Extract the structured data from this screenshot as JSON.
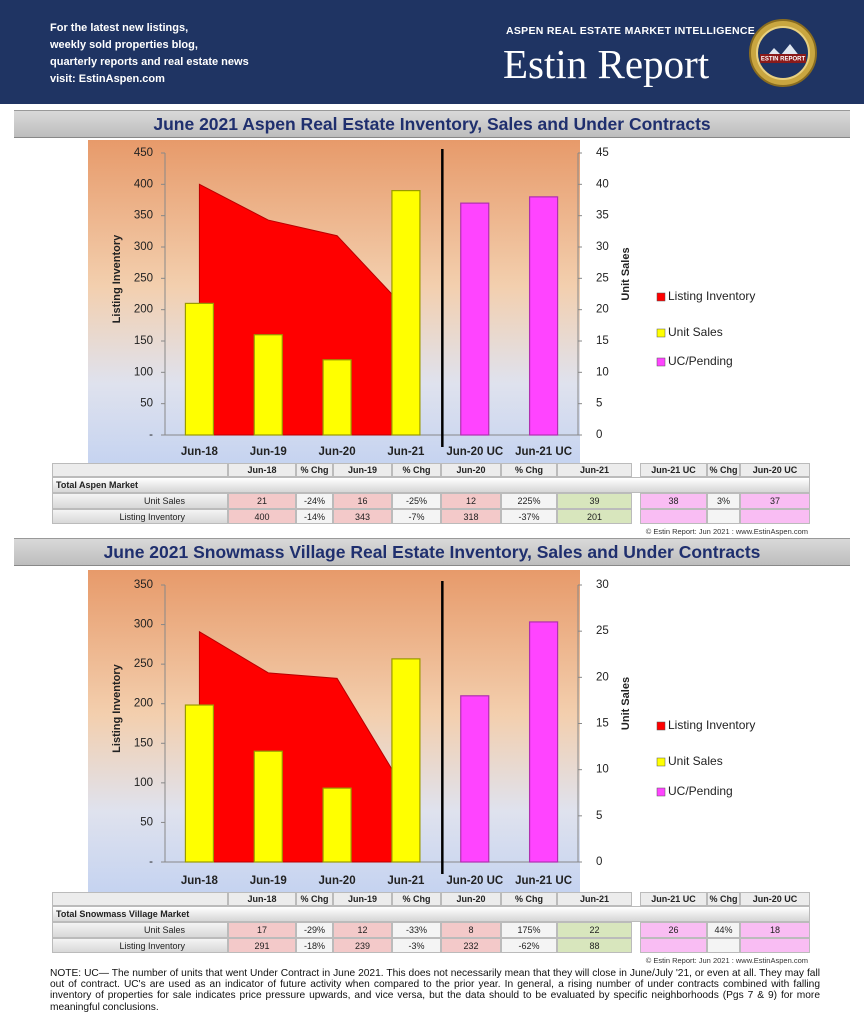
{
  "header": {
    "lines": [
      "For the latest new listings,",
      "weekly sold properties blog,",
      "quarterly reports and real estate news",
      "visit: EstinAspen.com"
    ],
    "tagline": "ASPEN REAL ESTATE MARKET INTELLIGENCE",
    "brand": "Estin Report",
    "badge": "ESTIN REPORT"
  },
  "chart_data": [
    {
      "type": "combo",
      "title": "June 2021 Aspen Real Estate Inventory, Sales and Under Contracts",
      "ylabel": "Listing Inventory",
      "y2label": "Unit Sales",
      "categories": [
        "Jun-18",
        "Jun-19",
        "Jun-20",
        "Jun-21",
        "Jun-20 UC",
        "Jun-21 UC"
      ],
      "ylim": [
        0,
        450
      ],
      "yticks": [
        {
          "value": 0,
          "label": "-"
        },
        50,
        100,
        150,
        200,
        250,
        300,
        350,
        400,
        450
      ],
      "y2lim": [
        0,
        45
      ],
      "y2ticks": [
        0,
        5,
        10,
        15,
        20,
        25,
        30,
        35,
        40,
        45
      ],
      "legend": "right",
      "series": [
        {
          "name": "Listing Inventory",
          "type": "area",
          "color": "#ff0000",
          "values": [
            400,
            343,
            318,
            201,
            null,
            null
          ]
        },
        {
          "name": "Unit Sales",
          "type": "bar",
          "axis": "y2",
          "color": "#ffff00",
          "values": [
            21,
            16,
            12,
            39,
            null,
            null
          ]
        },
        {
          "name": "UC/Pending",
          "type": "bar",
          "axis": "y2",
          "color": "#ff44ff",
          "values": [
            null,
            null,
            null,
            null,
            37,
            38
          ]
        }
      ]
    },
    {
      "type": "combo",
      "title": "June 2021 Snowmass Village Real Estate Inventory, Sales and Under Contracts",
      "ylabel": "Listing Inventory",
      "y2label": "Unit Sales",
      "categories": [
        "Jun-18",
        "Jun-19",
        "Jun-20",
        "Jun-21",
        "Jun-20 UC",
        "Jun-21 UC"
      ],
      "ylim": [
        0,
        350
      ],
      "yticks": [
        {
          "value": 0,
          "label": "-"
        },
        50,
        100,
        150,
        200,
        250,
        300,
        350
      ],
      "y2lim": [
        0,
        30
      ],
      "y2ticks": [
        0,
        5,
        10,
        15,
        20,
        25,
        30
      ],
      "legend": "right",
      "series": [
        {
          "name": "Listing Inventory",
          "type": "area",
          "color": "#ff0000",
          "values": [
            291,
            239,
            232,
            88,
            null,
            null
          ]
        },
        {
          "name": "Unit Sales",
          "type": "bar",
          "axis": "y2",
          "color": "#ffff00",
          "values": [
            17,
            12,
            8,
            22,
            null,
            null
          ]
        },
        {
          "name": "UC/Pending",
          "type": "bar",
          "axis": "y2",
          "color": "#ff44ff",
          "values": [
            null,
            null,
            null,
            null,
            18,
            26
          ]
        }
      ]
    }
  ],
  "tables": [
    {
      "title": "Total Aspen Market",
      "columns": [
        "Jun-18",
        "% Chg",
        "Jun-19",
        "% Chg",
        "Jun-20",
        "% Chg",
        "Jun-21"
      ],
      "uc_columns": [
        "Jun-21 UC",
        "% Chg",
        "Jun-20 UC"
      ],
      "rows": [
        {
          "label": "Unit Sales",
          "values": [
            "21",
            "-24%",
            "16",
            "-25%",
            "12",
            "225%",
            "39"
          ],
          "uc_values": [
            "38",
            "3%",
            "37"
          ]
        },
        {
          "label": "Listing Inventory",
          "values": [
            "400",
            "-14%",
            "343",
            "-7%",
            "318",
            "-37%",
            "201"
          ]
        }
      ],
      "credit": "© Estin Report: Jun 2021 : www.EstinAspen.com"
    },
    {
      "title": "Total Snowmass Village Market",
      "columns": [
        "Jun-18",
        "% Chg",
        "Jun-19",
        "% Chg",
        "Jun-20",
        "% Chg",
        "Jun-21"
      ],
      "uc_columns": [
        "Jun-21 UC",
        "% Chg",
        "Jun-20 UC"
      ],
      "rows": [
        {
          "label": "Unit Sales",
          "values": [
            "17",
            "-29%",
            "12",
            "-33%",
            "8",
            "175%",
            "22"
          ],
          "uc_values": [
            "26",
            "44%",
            "18"
          ]
        },
        {
          "label": "Listing Inventory",
          "values": [
            "291",
            "-18%",
            "239",
            "-3%",
            "232",
            "-62%",
            "88"
          ]
        }
      ],
      "credit": "© Estin Report: Jun 2021 : www.EstinAspen.com"
    }
  ],
  "note": "NOTE: UC— The number of units that went Under Contract in June 2021. This does not necessarily mean that they will close in June/July '21, or even at all. They may fall out of contract.  UC's are used as an indicator of future activity when compared to the prior year. In general, a rising number of under contracts combined with falling inventory of properties for sale indicates price pressure upwards, and vice versa, but the data should to be evaluated by specific neighborhoods (Pgs 7 & 9) for more meaningful conclusions."
}
